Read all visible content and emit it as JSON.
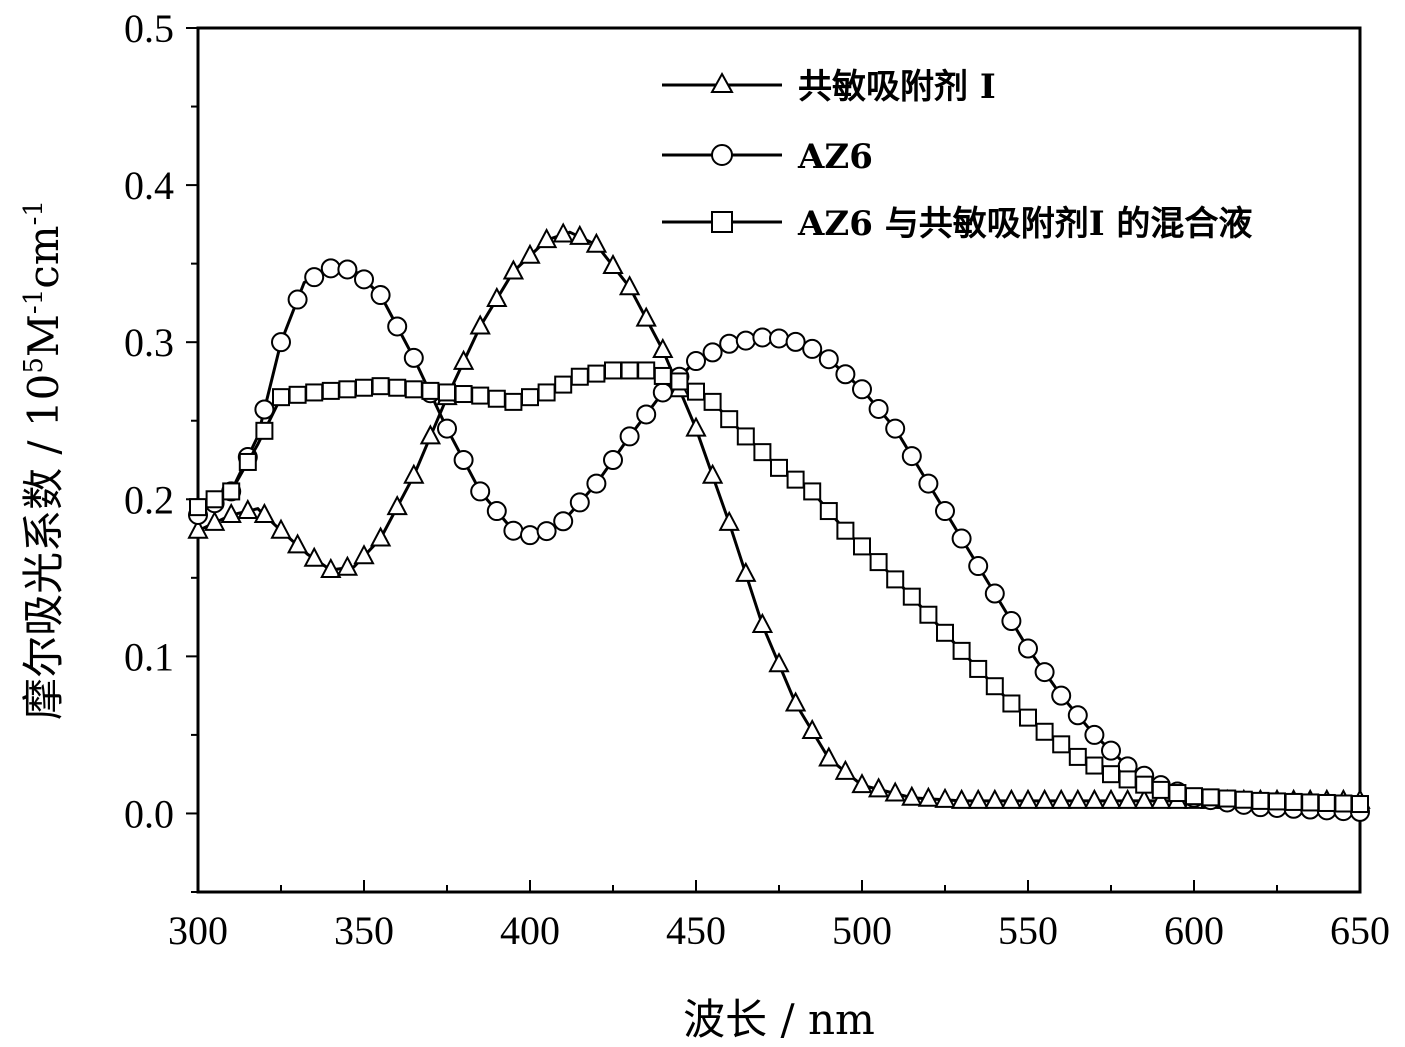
{
  "chart_data": {
    "type": "line",
    "xlabel": "波长 / nm",
    "ylabel_main": "摩尔吸光系数 / 10",
    "ylabel_unit_base": "M",
    "ylabel_sup_5": "5",
    "ylabel_sup_1": "-1",
    "ylabel_cm": "cm",
    "ylabel_sup_2": "-1",
    "xlim": [
      300,
      650
    ],
    "ylim": [
      -0.05,
      0.5
    ],
    "xticks": [
      "300",
      "350",
      "400",
      "450",
      "500",
      "550",
      "600",
      "650"
    ],
    "yticks": [
      "0.0",
      "0.1",
      "0.2",
      "0.3",
      "0.4",
      "0.5"
    ],
    "legend_position": "top-right",
    "series": [
      {
        "name": "共敏吸附剂 I",
        "marker": "triangle",
        "points": [
          [
            300,
            0.18
          ],
          [
            310,
            0.19
          ],
          [
            318,
            0.194
          ],
          [
            325,
            0.18
          ],
          [
            333,
            0.165
          ],
          [
            340,
            0.155
          ],
          [
            347,
            0.157
          ],
          [
            355,
            0.175
          ],
          [
            365,
            0.215
          ],
          [
            375,
            0.265
          ],
          [
            385,
            0.31
          ],
          [
            395,
            0.345
          ],
          [
            405,
            0.365
          ],
          [
            412,
            0.37
          ],
          [
            420,
            0.362
          ],
          [
            430,
            0.335
          ],
          [
            440,
            0.295
          ],
          [
            450,
            0.245
          ],
          [
            460,
            0.185
          ],
          [
            470,
            0.12
          ],
          [
            480,
            0.07
          ],
          [
            490,
            0.035
          ],
          [
            500,
            0.018
          ],
          [
            515,
            0.01
          ],
          [
            530,
            0.008
          ],
          [
            560,
            0.008
          ],
          [
            600,
            0.008
          ],
          [
            650,
            0.008
          ]
        ]
      },
      {
        "name": "AZ6",
        "marker": "circle",
        "points": [
          [
            300,
            0.19
          ],
          [
            310,
            0.205
          ],
          [
            318,
            0.24
          ],
          [
            325,
            0.3
          ],
          [
            332,
            0.338
          ],
          [
            340,
            0.347
          ],
          [
            347,
            0.346
          ],
          [
            355,
            0.33
          ],
          [
            365,
            0.29
          ],
          [
            375,
            0.245
          ],
          [
            385,
            0.205
          ],
          [
            395,
            0.18
          ],
          [
            402,
            0.176
          ],
          [
            410,
            0.186
          ],
          [
            420,
            0.21
          ],
          [
            430,
            0.24
          ],
          [
            440,
            0.268
          ],
          [
            450,
            0.288
          ],
          [
            460,
            0.299
          ],
          [
            470,
            0.303
          ],
          [
            478,
            0.302
          ],
          [
            488,
            0.293
          ],
          [
            500,
            0.27
          ],
          [
            510,
            0.245
          ],
          [
            520,
            0.21
          ],
          [
            530,
            0.175
          ],
          [
            540,
            0.14
          ],
          [
            550,
            0.105
          ],
          [
            560,
            0.075
          ],
          [
            570,
            0.05
          ],
          [
            580,
            0.03
          ],
          [
            590,
            0.018
          ],
          [
            600,
            0.01
          ],
          [
            620,
            0.004
          ],
          [
            650,
            0.001
          ]
        ]
      },
      {
        "name": "AZ6 与共敏吸附剂I 的混合液",
        "marker": "square",
        "points": [
          [
            300,
            0.195
          ],
          [
            310,
            0.205
          ],
          [
            318,
            0.235
          ],
          [
            325,
            0.265
          ],
          [
            335,
            0.268
          ],
          [
            345,
            0.27
          ],
          [
            355,
            0.272
          ],
          [
            365,
            0.27
          ],
          [
            375,
            0.268
          ],
          [
            385,
            0.266
          ],
          [
            395,
            0.262
          ],
          [
            405,
            0.268
          ],
          [
            415,
            0.278
          ],
          [
            425,
            0.282
          ],
          [
            435,
            0.282
          ],
          [
            445,
            0.275
          ],
          [
            455,
            0.262
          ],
          [
            465,
            0.24
          ],
          [
            475,
            0.22
          ],
          [
            485,
            0.205
          ],
          [
            495,
            0.18
          ],
          [
            505,
            0.16
          ],
          [
            515,
            0.138
          ],
          [
            525,
            0.115
          ],
          [
            535,
            0.092
          ],
          [
            545,
            0.07
          ],
          [
            555,
            0.052
          ],
          [
            565,
            0.036
          ],
          [
            575,
            0.025
          ],
          [
            590,
            0.015
          ],
          [
            600,
            0.011
          ],
          [
            620,
            0.008
          ],
          [
            650,
            0.006
          ]
        ]
      }
    ]
  }
}
